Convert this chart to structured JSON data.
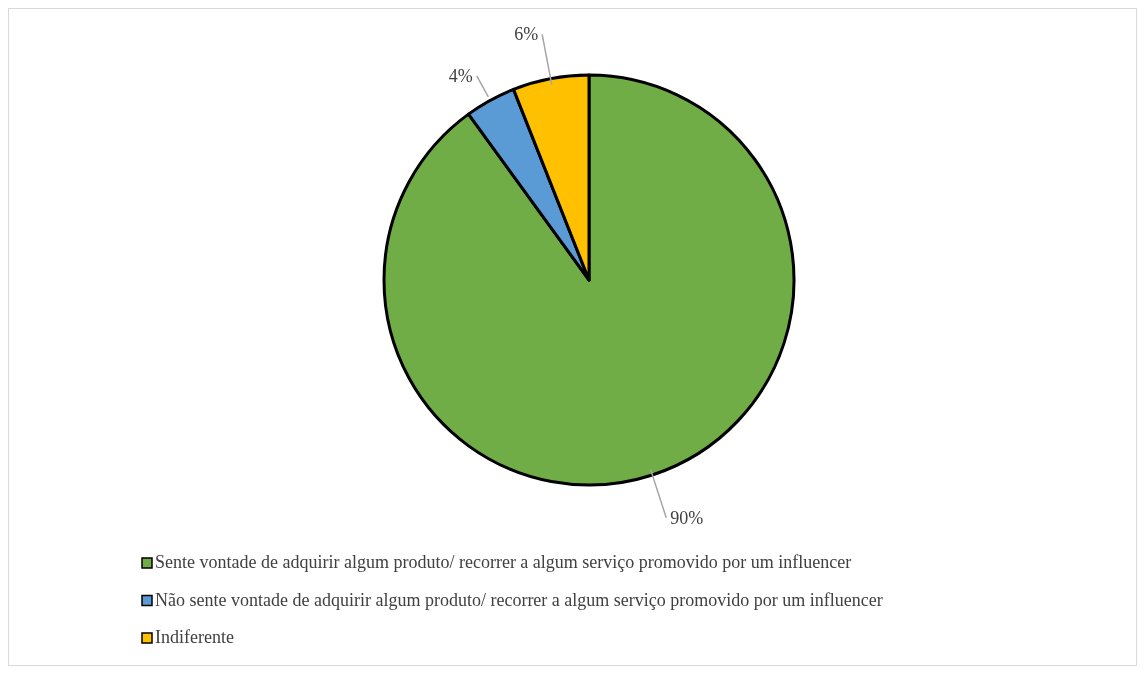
{
  "chart_data": {
    "type": "pie",
    "categories": [
      "Sente vontade de adquirir algum produto/ recorrer a algum serviço promovido por um influencer",
      "Não sente vontade de adquirir algum produto/ recorrer a algum serviço promovido por um influencer",
      "Indiferente"
    ],
    "values": [
      90,
      4,
      6
    ],
    "value_labels": [
      "90%",
      "4%",
      "6%"
    ],
    "colors": [
      "#70ad47",
      "#5b9bd5",
      "#ffc000"
    ],
    "legend": "bottom"
  }
}
